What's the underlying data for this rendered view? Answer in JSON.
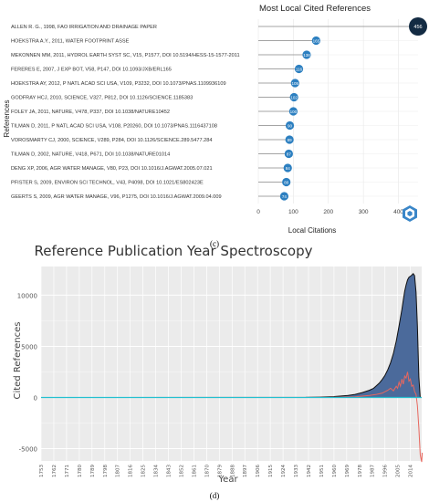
{
  "panel_c_caption": "(c)",
  "panel_d_caption": "(d)",
  "chart_data": [
    {
      "type": "lollipop",
      "title": "Most Local Cited References",
      "xlabel": "Local Citations",
      "ylabel": "References",
      "xlim": [
        0,
        456
      ],
      "xticks": [
        0,
        100,
        200,
        300,
        400
      ],
      "grid": true,
      "point_color": "#2c7fc0",
      "highlight_color": "#132b43",
      "items": [
        {
          "label": "ALLEN R. G., 1998, FAO IRRIGATION AND DRAINAGE PAPER",
          "value": 456
        },
        {
          "label": "HOEKSTRA A.Y., 2011, WATER FOOTPRINT ASSE",
          "value": 165
        },
        {
          "label": "MEKONNEN MM, 2011, HYDROL EARTH SYST SC, V15, P1577, DOI 10.5194/HESS-15-1577-2011",
          "value": 138
        },
        {
          "label": "FERERES E, 2007, J EXP BOT, V58, P147, DOI 10.1093/JXB/ERL165",
          "value": 116
        },
        {
          "label": "HOEKSTRA AY, 2012, P NATL ACAD SCI USA, V109, P3232, DOI 10.1073/PNAS.1109936109",
          "value": 105
        },
        {
          "label": "GODFRAY HCJ, 2010, SCIENCE, V327, P812, DOI 10.1126/SCIENCE.1185383",
          "value": 102
        },
        {
          "label": "FOLEY JA, 2011, NATURE, V478, P337, DOI 10.1038/NATURE10452",
          "value": 100
        },
        {
          "label": "TILMAN D, 2011, P NATL ACAD SCI USA, V108, P20260, DOI 10.1073/PNAS.1116437108",
          "value": 90
        },
        {
          "label": "VOROSMARTY CJ, 2000, SCIENCE, V289, P284, DOI 10.1126/SCIENCE.289.5477.284",
          "value": 89
        },
        {
          "label": "TILMAN D, 2002, NATURE, V418, P671, DOI 10.1038/NATURE01014",
          "value": 87
        },
        {
          "label": "DENG XP, 2006, AGR WATER MANAGE, V80, P23, DOI 10.1016/J.AGWAT.2005.07.021",
          "value": 84
        },
        {
          "label": "PFISTER S, 2009, ENVIRON SCI TECHNOL, V43, P4098, DOI 10.1021/ES802423E",
          "value": 80
        },
        {
          "label": "GEERTS S, 2009, AGR WATER MANAGE, V96, P1275, DOI 10.1016/J.AGWAT.2009.04.009",
          "value": 74
        }
      ]
    },
    {
      "type": "area",
      "title": "Reference Publication Year Spectroscopy",
      "xlabel": "Year",
      "ylabel": "Cited References",
      "xlim": [
        1753,
        2022
      ],
      "ylim": [
        -6200,
        12800
      ],
      "yticks": [
        -5000,
        0,
        5000,
        10000
      ],
      "xticks": [
        1753,
        1762,
        1771,
        1780,
        1789,
        1798,
        1807,
        1816,
        1825,
        1834,
        1843,
        1852,
        1861,
        1870,
        1879,
        1888,
        1897,
        1906,
        1915,
        1924,
        1933,
        1942,
        1951,
        1960,
        1969,
        1978,
        1987,
        1996,
        2005,
        2014
      ],
      "grid": true,
      "series": [
        {
          "kind": "area",
          "color": "#4b6a9b",
          "points": [
            [
              1753,
              0
            ],
            [
              1900,
              0
            ],
            [
              1940,
              10
            ],
            [
              1950,
              40
            ],
            [
              1960,
              90
            ],
            [
              1970,
              200
            ],
            [
              1975,
              300
            ],
            [
              1980,
              480
            ],
            [
              1985,
              700
            ],
            [
              1988,
              900
            ],
            [
              1990,
              1150
            ],
            [
              1992,
              1400
            ],
            [
              1994,
              1750
            ],
            [
              1996,
              2150
            ],
            [
              1998,
              2700
            ],
            [
              2000,
              3400
            ],
            [
              2002,
              4300
            ],
            [
              2004,
              5500
            ],
            [
              2006,
              7000
            ],
            [
              2008,
              8600
            ],
            [
              2009,
              9500
            ],
            [
              2010,
              10400
            ],
            [
              2011,
              11000
            ],
            [
              2012,
              11500
            ],
            [
              2013,
              11750
            ],
            [
              2014,
              11850
            ],
            [
              2015,
              11950
            ],
            [
              2016,
              12100
            ],
            [
              2017,
              11900
            ],
            [
              2018,
              10300
            ],
            [
              2019,
              7000
            ],
            [
              2020,
              2000
            ],
            [
              2021,
              0
            ]
          ]
        },
        {
          "kind": "line",
          "color": "#e8675e",
          "points": [
            [
              1753,
              0
            ],
            [
              1940,
              5
            ],
            [
              1960,
              30
            ],
            [
              1975,
              70
            ],
            [
              1985,
              200
            ],
            [
              1990,
              300
            ],
            [
              1994,
              420
            ],
            [
              1998,
              700
            ],
            [
              2000,
              900
            ],
            [
              2002,
              650
            ],
            [
              2004,
              1100
            ],
            [
              2005,
              900
            ],
            [
              2006,
              1500
            ],
            [
              2007,
              1100
            ],
            [
              2008,
              1800
            ],
            [
              2009,
              1300
            ],
            [
              2010,
              2100
            ],
            [
              2011,
              1900
            ],
            [
              2012,
              2500
            ],
            [
              2013,
              1600
            ],
            [
              2014,
              1800
            ],
            [
              2015,
              1100
            ],
            [
              2016,
              1200
            ],
            [
              2017,
              600
            ],
            [
              2018,
              300
            ],
            [
              2019,
              -800
            ],
            [
              2020,
              -3000
            ],
            [
              2021,
              -5600
            ],
            [
              2022,
              -6300
            ],
            [
              2022.4,
              -5400
            ]
          ]
        },
        {
          "kind": "hline",
          "color": "#25c0d0",
          "y": 0
        }
      ]
    }
  ]
}
